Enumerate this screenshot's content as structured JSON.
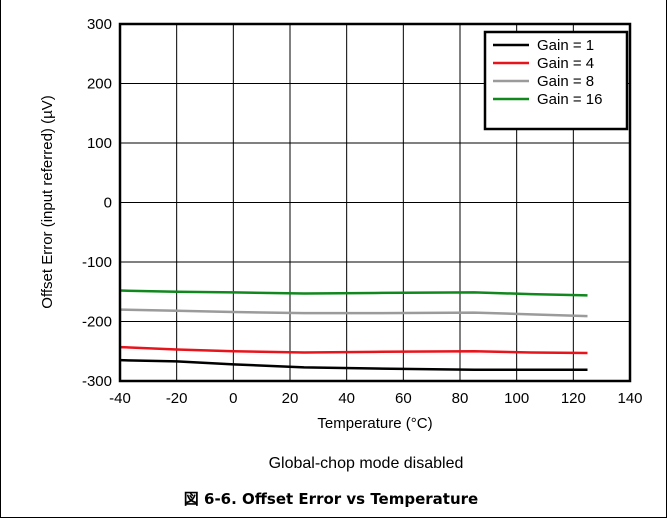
{
  "chart_data": {
    "type": "line",
    "title": "",
    "xlabel": "Temperature (°C)",
    "ylabel": "Offset Error (input referred) (µV)",
    "xlim": [
      -40,
      140
    ],
    "ylim": [
      -300,
      300
    ],
    "xticks": [
      -40,
      -20,
      0,
      20,
      40,
      60,
      80,
      100,
      120,
      140
    ],
    "yticks": [
      -300,
      -200,
      -100,
      0,
      100,
      200,
      300
    ],
    "grid": true,
    "legend_position": "top-right",
    "x": [
      -40,
      -20,
      0,
      25,
      50,
      85,
      105,
      125
    ],
    "series": [
      {
        "name": "Gain = 1",
        "color": "#000000",
        "values": [
          -265,
          -267,
          -272,
          -277,
          -279,
          -281,
          -281,
          -281
        ]
      },
      {
        "name": "Gain = 4",
        "color": "#e8141c",
        "values": [
          -243,
          -247,
          -250,
          -252,
          -251,
          -250,
          -252,
          -253
        ]
      },
      {
        "name": "Gain = 8",
        "color": "#9b9b9b",
        "values": [
          -180,
          -182,
          -184,
          -186,
          -186,
          -185,
          -188,
          -191
        ]
      },
      {
        "name": "Gain = 16",
        "color": "#11881e",
        "values": [
          -148,
          -150,
          -151,
          -153,
          -152,
          -151,
          -154,
          -156
        ]
      }
    ]
  },
  "note": "Global-chop mode disabled",
  "caption": "図 6-6. Offset Error vs Temperature"
}
